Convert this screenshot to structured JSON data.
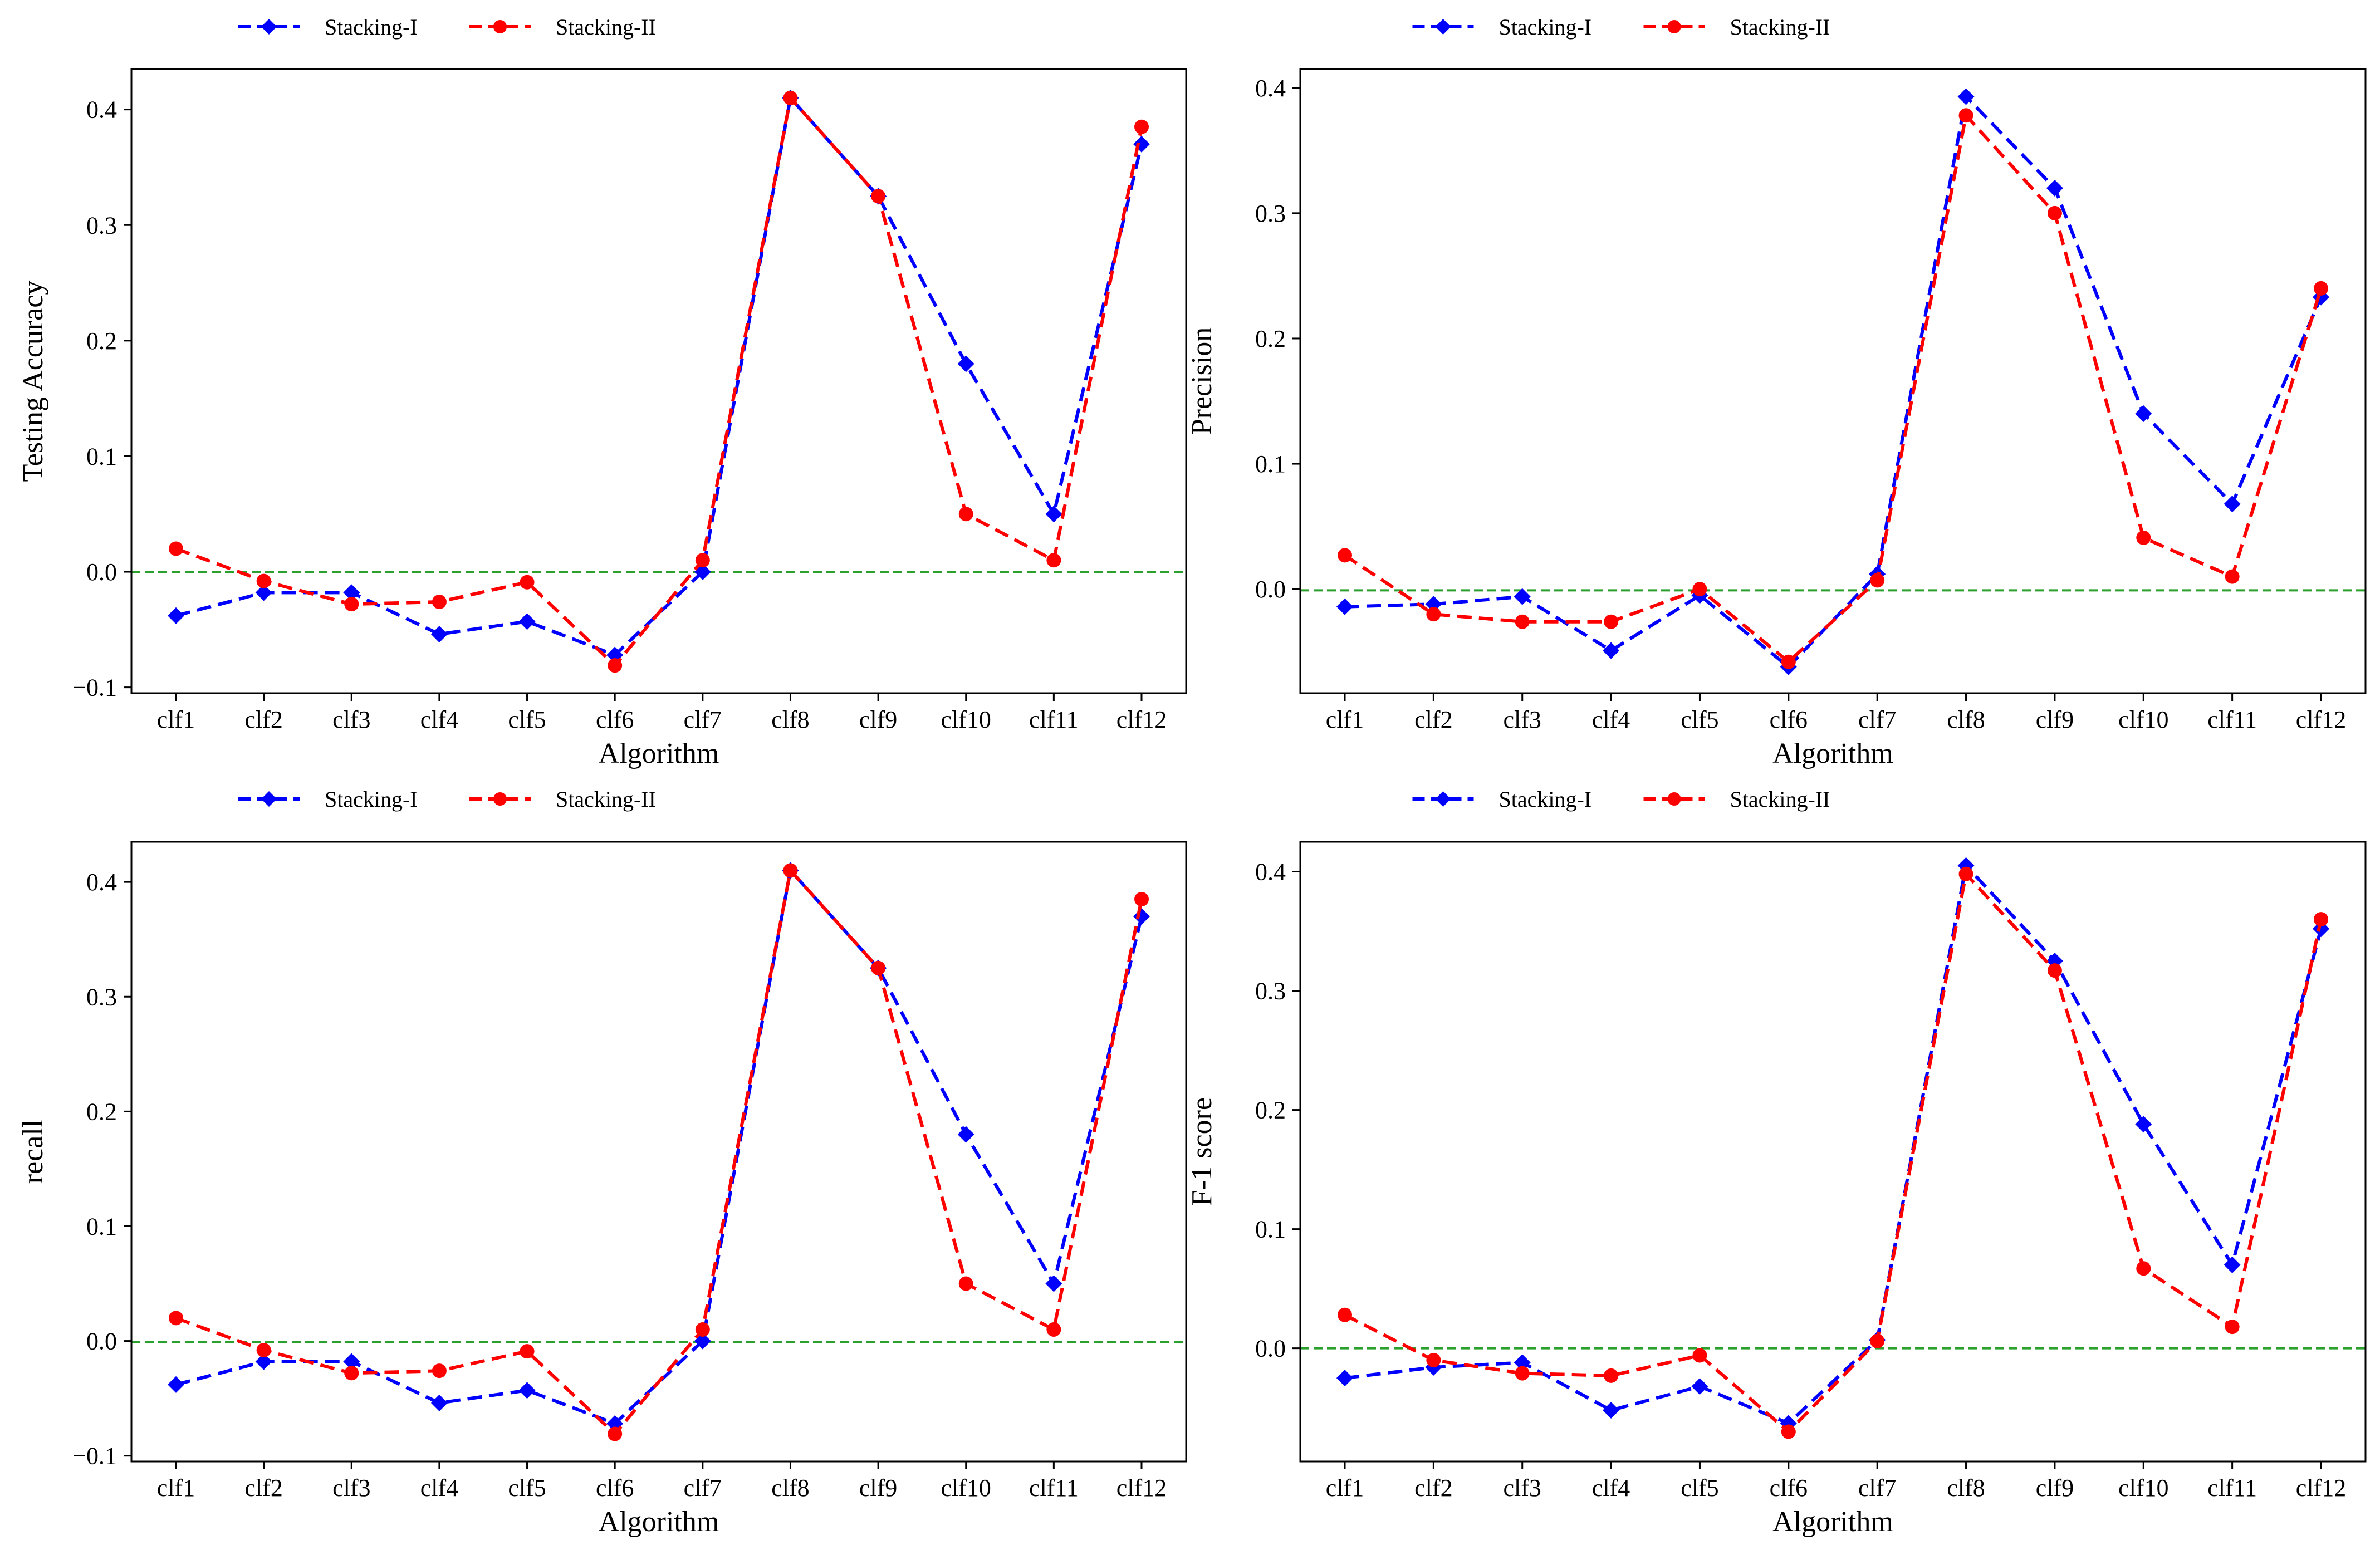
{
  "colors": {
    "stacking_i": "#0000ff",
    "stacking_ii": "#ff0000",
    "baseline": "#2ca02c"
  },
  "legend": {
    "series_1": "Stacking-I",
    "series_2": "Stacking-II"
  },
  "chart_data": [
    {
      "type": "line",
      "title": "",
      "xlabel": "Algorithm",
      "ylabel": "Testing Accuracy",
      "categories": [
        "clf1",
        "clf2",
        "clf3",
        "clf4",
        "clf5",
        "clf6",
        "clf7",
        "clf8",
        "clf9",
        "clf10",
        "clf11",
        "clf12"
      ],
      "ylim": [
        -0.105,
        0.435
      ],
      "yticks": [
        -0.1,
        0.0,
        0.1,
        0.2,
        0.3,
        0.4
      ],
      "ytick_labels": [
        "−0.1",
        "0.0",
        "0.1",
        "0.2",
        "0.3",
        "0.4"
      ],
      "baseline": 0.0,
      "legend_position": "top-center",
      "series": [
        {
          "name": "Stacking-I",
          "marker": "diamond",
          "values": [
            -0.038,
            -0.018,
            -0.018,
            -0.054,
            -0.043,
            -0.072,
            0.0,
            0.41,
            0.325,
            0.18,
            0.05,
            0.37
          ]
        },
        {
          "name": "Stacking-II",
          "marker": "circle",
          "values": [
            0.02,
            -0.008,
            -0.028,
            -0.026,
            -0.009,
            -0.081,
            0.01,
            0.41,
            0.325,
            0.05,
            0.01,
            0.385
          ]
        }
      ]
    },
    {
      "type": "line",
      "title": "",
      "xlabel": "Algorithm",
      "ylabel": "Precision",
      "categories": [
        "clf1",
        "clf2",
        "clf3",
        "clf4",
        "clf5",
        "clf6",
        "clf7",
        "clf8",
        "clf9",
        "clf10",
        "clf11",
        "clf12"
      ],
      "ylim": [
        -0.083,
        0.415
      ],
      "yticks": [
        0.0,
        0.1,
        0.2,
        0.3,
        0.4
      ],
      "ytick_labels": [
        "0.0",
        "0.1",
        "0.2",
        "0.3",
        "0.4"
      ],
      "baseline": -0.001,
      "legend_position": "top-center",
      "series": [
        {
          "name": "Stacking-I",
          "marker": "diamond",
          "values": [
            -0.014,
            -0.012,
            -0.006,
            -0.049,
            -0.005,
            -0.062,
            0.012,
            0.393,
            0.32,
            0.14,
            0.068,
            0.233
          ]
        },
        {
          "name": "Stacking-II",
          "marker": "circle",
          "values": [
            0.027,
            -0.02,
            -0.026,
            -0.026,
            0.0,
            -0.058,
            0.007,
            0.378,
            0.3,
            0.041,
            0.01,
            0.24
          ]
        }
      ]
    },
    {
      "type": "line",
      "title": "",
      "xlabel": "Algorithm",
      "ylabel": "recall",
      "categories": [
        "clf1",
        "clf2",
        "clf3",
        "clf4",
        "clf5",
        "clf6",
        "clf7",
        "clf8",
        "clf9",
        "clf10",
        "clf11",
        "clf12"
      ],
      "ylim": [
        -0.105,
        0.435
      ],
      "yticks": [
        -0.1,
        0.0,
        0.1,
        0.2,
        0.3,
        0.4
      ],
      "ytick_labels": [
        "−0.1",
        "0.0",
        "0.1",
        "0.2",
        "0.3",
        "0.4"
      ],
      "baseline": -0.001,
      "legend_position": "top-center",
      "series": [
        {
          "name": "Stacking-I",
          "marker": "diamond",
          "values": [
            -0.038,
            -0.018,
            -0.018,
            -0.054,
            -0.043,
            -0.072,
            0.0,
            0.41,
            0.325,
            0.18,
            0.05,
            0.37
          ]
        },
        {
          "name": "Stacking-II",
          "marker": "circle",
          "values": [
            0.02,
            -0.008,
            -0.028,
            -0.026,
            -0.009,
            -0.081,
            0.01,
            0.41,
            0.325,
            0.05,
            0.01,
            0.385
          ]
        }
      ]
    },
    {
      "type": "line",
      "title": "",
      "xlabel": "Algorithm",
      "ylabel": "F-1 score",
      "categories": [
        "clf1",
        "clf2",
        "clf3",
        "clf4",
        "clf5",
        "clf6",
        "clf7",
        "clf8",
        "clf9",
        "clf10",
        "clf11",
        "clf12"
      ],
      "ylim": [
        -0.095,
        0.425
      ],
      "yticks": [
        0.0,
        0.1,
        0.2,
        0.3,
        0.4
      ],
      "ytick_labels": [
        "0.0",
        "0.1",
        "0.2",
        "0.3",
        "0.4"
      ],
      "baseline": 0.0,
      "legend_position": "top-center",
      "series": [
        {
          "name": "Stacking-I",
          "marker": "diamond",
          "values": [
            -0.025,
            -0.016,
            -0.012,
            -0.052,
            -0.032,
            -0.063,
            0.007,
            0.405,
            0.325,
            0.188,
            0.07,
            0.352
          ]
        },
        {
          "name": "Stacking-II",
          "marker": "circle",
          "values": [
            0.028,
            -0.01,
            -0.021,
            -0.023,
            -0.006,
            -0.07,
            0.006,
            0.398,
            0.317,
            0.067,
            0.018,
            0.36
          ]
        }
      ]
    }
  ]
}
